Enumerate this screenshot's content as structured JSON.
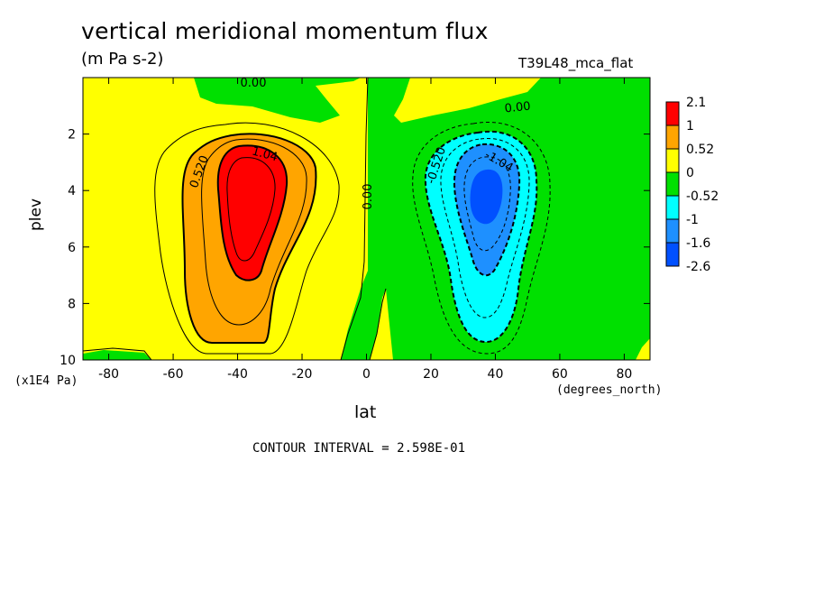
{
  "chart_data": {
    "type": "contour",
    "title": "vertical meridional momentum flux",
    "subtitle": "(m Pa s-2)",
    "run_label": "T39L48_mca_flat",
    "xlabel": "lat",
    "x_units": "(degrees_north)",
    "ylabel": "plev",
    "y_units": "(x1E4 Pa)",
    "xlim": [
      -88,
      88
    ],
    "ylim": [
      10,
      0
    ],
    "x_ticks": [
      "-80",
      "-60",
      "-40",
      "-20",
      "0",
      "20",
      "40",
      "60",
      "80"
    ],
    "x_tick_values": [
      -80,
      -60,
      -40,
      -20,
      0,
      20,
      40,
      60,
      80
    ],
    "y_ticks": [
      "2",
      "4",
      "6",
      "8",
      "10"
    ],
    "y_tick_values": [
      2,
      4,
      6,
      8,
      10
    ],
    "contour_interval_text": "CONTOUR INTERVAL = 2.598E-01",
    "legend": {
      "levels": [
        "2.1",
        "1",
        "0.52",
        "0",
        "-0.52",
        "-1",
        "-1.6",
        "-2.6"
      ],
      "colors": [
        "#ff0000",
        "#ffa500",
        "#ffff00",
        "#00e000",
        "#00ffff",
        "#1e90ff",
        "#0050ff"
      ]
    },
    "contour_labels": [
      "0.00",
      "0.00",
      "0.520",
      "1.04",
      "0.00",
      "-0.520",
      "-1.04"
    ],
    "features": [
      {
        "name": "southern-positive-max",
        "lat": -36,
        "plev": 4.0,
        "value": 2.1
      },
      {
        "name": "northern-negative-min",
        "lat": 36,
        "plev": 4.0,
        "value": -2.6
      }
    ]
  }
}
